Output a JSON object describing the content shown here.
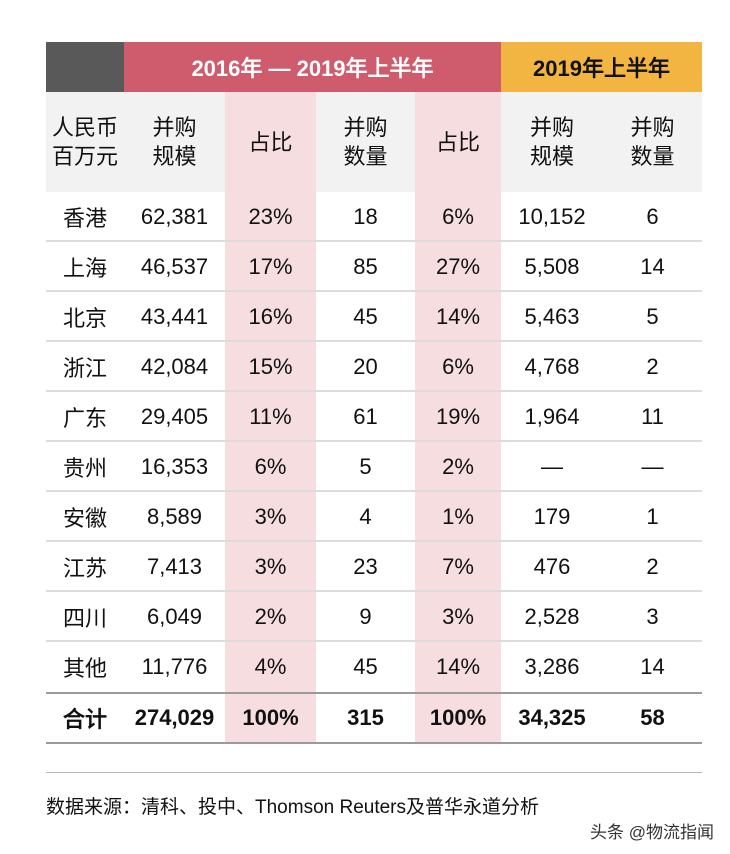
{
  "header": {
    "group1": "2016年 — 2019年上半年",
    "group2": "2019年上半年"
  },
  "subheader": {
    "col0": [
      "人民币",
      "百万元"
    ],
    "col1": [
      "并购",
      "规模"
    ],
    "col2": "占比",
    "col3": [
      "并购",
      "数量"
    ],
    "col4": "占比",
    "col5": [
      "并购",
      "规模"
    ],
    "col6": [
      "并购",
      "数量"
    ]
  },
  "rows": [
    {
      "region": "香港",
      "value": "62,381",
      "value_share": "23%",
      "count": "18",
      "count_share": "6%",
      "h1_value": "10,152",
      "h1_count": "6"
    },
    {
      "region": "上海",
      "value": "46,537",
      "value_share": "17%",
      "count": "85",
      "count_share": "27%",
      "h1_value": "5,508",
      "h1_count": "14"
    },
    {
      "region": "北京",
      "value": "43,441",
      "value_share": "16%",
      "count": "45",
      "count_share": "14%",
      "h1_value": "5,463",
      "h1_count": "5"
    },
    {
      "region": "浙江",
      "value": "42,084",
      "value_share": "15%",
      "count": "20",
      "count_share": "6%",
      "h1_value": "4,768",
      "h1_count": "2"
    },
    {
      "region": "广东",
      "value": "29,405",
      "value_share": "11%",
      "count": "61",
      "count_share": "19%",
      "h1_value": "1,964",
      "h1_count": "11"
    },
    {
      "region": "贵州",
      "value": "16,353",
      "value_share": "6%",
      "count": "5",
      "count_share": "2%",
      "h1_value": "—",
      "h1_count": "—"
    },
    {
      "region": "安徽",
      "value": "8,589",
      "value_share": "3%",
      "count": "4",
      "count_share": "1%",
      "h1_value": "179",
      "h1_count": "1"
    },
    {
      "region": "江苏",
      "value": "7,413",
      "value_share": "3%",
      "count": "23",
      "count_share": "7%",
      "h1_value": "476",
      "h1_count": "2"
    },
    {
      "region": "四川",
      "value": "6,049",
      "value_share": "2%",
      "count": "9",
      "count_share": "3%",
      "h1_value": "2,528",
      "h1_count": "3"
    },
    {
      "region": "其他",
      "value": "11,776",
      "value_share": "4%",
      "count": "45",
      "count_share": "14%",
      "h1_value": "3,286",
      "h1_count": "14"
    }
  ],
  "total": {
    "region": "合计",
    "value": "274,029",
    "value_share": "100%",
    "count": "315",
    "count_share": "100%",
    "h1_value": "34,325",
    "h1_count": "58"
  },
  "footer": {
    "source": "数据来源：清科、投中、Thomson Reuters及普华永道分析",
    "watermark": "头条 @物流指闻"
  },
  "colors": {
    "dark_header": "#595959",
    "red_header": "#cf5c6c",
    "orange_header": "#f3b541",
    "pink_column": "#f5dde0",
    "subheader_bg": "#f2f2f2"
  }
}
